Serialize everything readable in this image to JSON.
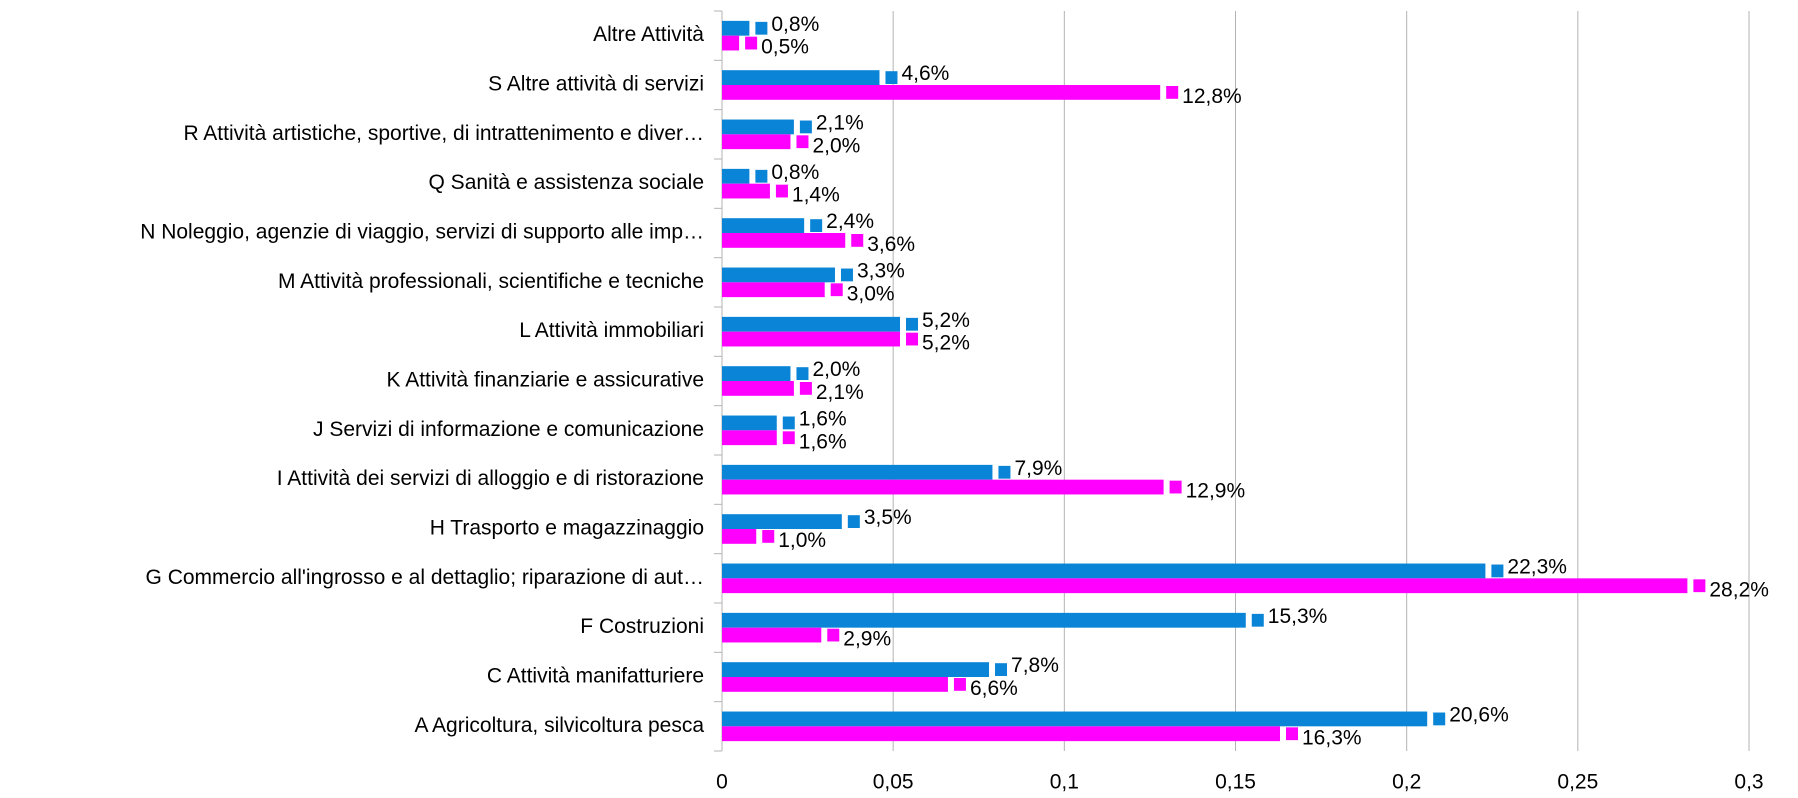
{
  "chart_data": {
    "type": "hbar",
    "categories": [
      "Altre Attività",
      "S Altre attività di servizi",
      "R Attività artistiche, sportive, di intrattenimento e diver…",
      "Q Sanità e assistenza sociale",
      "N Noleggio, agenzie di viaggio, servizi di supporto alle imp…",
      "M Attività professionali, scientifiche e tecniche",
      "L Attività immobiliari",
      "K Attività finanziarie e assicurative",
      "J Servizi di informazione e comunicazione",
      "I Attività dei servizi di alloggio e di ristorazione",
      "H Trasporto e magazzinaggio",
      "G Commercio all'ingrosso e al dettaglio; riparazione di aut…",
      "F Costruzioni",
      "C Attività manifatturiere",
      "A Agricoltura, silvicoltura pesca"
    ],
    "series": [
      {
        "color": "#0a84d6",
        "values": [
          0.008,
          0.046,
          0.021,
          0.008,
          0.024,
          0.033,
          0.052,
          0.02,
          0.016,
          0.079,
          0.035,
          0.223,
          0.153,
          0.078,
          0.206
        ],
        "value_labels": [
          "0,8%",
          "4,6%",
          "2,1%",
          "0,8%",
          "2,4%",
          "3,3%",
          "5,2%",
          "2,0%",
          "1,6%",
          "7,9%",
          "3,5%",
          "22,3%",
          "15,3%",
          "7,8%",
          "20,6%"
        ]
      },
      {
        "color": "#ff00ff",
        "values": [
          0.005,
          0.128,
          0.02,
          0.014,
          0.036,
          0.03,
          0.052,
          0.021,
          0.016,
          0.129,
          0.01,
          0.282,
          0.029,
          0.066,
          0.163
        ],
        "value_labels": [
          "0,5%",
          "12,8%",
          "2,0%",
          "1,4%",
          "3,6%",
          "3,0%",
          "5,2%",
          "2,1%",
          "1,6%",
          "12,9%",
          "1,0%",
          "28,2%",
          "2,9%",
          "6,6%",
          "16,3%"
        ]
      }
    ],
    "xlim": [
      0,
      0.3
    ],
    "xticks": [
      0,
      {
        "value": 0.05,
        "label": "0,05"
      },
      {
        "value": 0.1,
        "label": "0,1"
      },
      {
        "value": 0.15,
        "label": "0,15"
      },
      {
        "value": 0.2,
        "label": "0,2"
      },
      {
        "value": 0.25,
        "label": "0,25"
      },
      {
        "value": 0.3,
        "label": "0,3"
      }
    ],
    "grid": true
  }
}
